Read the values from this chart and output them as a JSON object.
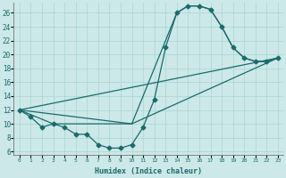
{
  "xlabel": "Humidex (Indice chaleur)",
  "background_color": "#cce8e8",
  "grid_color": "#aad4d4",
  "line_color": "#1a6b6b",
  "xlim": [
    -0.5,
    23.5
  ],
  "ylim": [
    5.5,
    27.5
  ],
  "yticks": [
    6,
    8,
    10,
    12,
    14,
    16,
    18,
    20,
    22,
    24,
    26
  ],
  "xticks": [
    0,
    1,
    2,
    3,
    4,
    5,
    6,
    7,
    8,
    9,
    10,
    11,
    12,
    13,
    14,
    15,
    16,
    17,
    18,
    19,
    20,
    21,
    22,
    23
  ],
  "curve1_x": [
    0,
    1,
    2,
    3,
    4,
    5,
    6,
    7,
    8,
    9,
    10,
    11,
    12,
    13,
    14,
    15,
    16,
    17,
    18,
    19,
    20,
    21,
    22,
    23
  ],
  "curve1_y": [
    12,
    11,
    9.5,
    10,
    9.5,
    8.5,
    8.5,
    7,
    6.5,
    6.5,
    7,
    9.5,
    13.5,
    21,
    26,
    27,
    27,
    26.5,
    24,
    21,
    19.5,
    19,
    19,
    19.5
  ],
  "curve2_x": [
    0,
    3,
    10,
    14,
    15,
    16,
    17,
    18,
    19,
    20,
    21,
    22,
    23
  ],
  "curve2_y": [
    12,
    10,
    10,
    26,
    27,
    27,
    26.5,
    24,
    21,
    19.5,
    19,
    19,
    19.5
  ],
  "curve3_x": [
    0,
    23
  ],
  "curve3_y": [
    12,
    19.5
  ],
  "curve4_x": [
    0,
    10,
    23
  ],
  "curve4_y": [
    12,
    10,
    19.5
  ],
  "markersize": 2.5,
  "linewidth": 0.9
}
